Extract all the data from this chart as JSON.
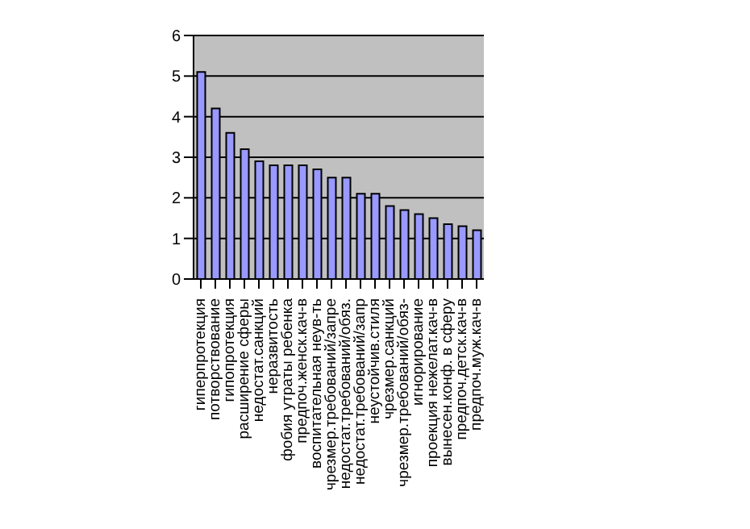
{
  "chart_data": {
    "type": "bar",
    "categories": [
      "гиперпротекция",
      "потворствование",
      "гипопротекция",
      "расширение сферы",
      "недостат.санкций",
      "неразвитость",
      "фобия утраты ребенка",
      "предпоч.женск.кач-в",
      "воспитательная неув-ть",
      "чрезмер.требований/запре",
      "недостат.требований/обяз.",
      "недостат.требований/запр",
      "неустойчив.стиля",
      "чрезмер.санкций",
      "чрезмер.требований/обяз-",
      "игнорирование",
      "проекция нежелат.кач-в",
      "вынесен.конф. в сферу",
      "предпоч.детск.кач-в",
      "предпоч.муж.кач-в"
    ],
    "values": [
      5.1,
      4.2,
      3.6,
      3.2,
      2.9,
      2.8,
      2.8,
      2.8,
      2.7,
      2.5,
      2.5,
      2.1,
      2.1,
      1.8,
      1.7,
      1.6,
      1.5,
      1.35,
      1.3,
      1.2
    ],
    "color": "#9999ff",
    "ylim": [
      0,
      6
    ],
    "yticks": [
      0,
      1,
      2,
      3,
      4,
      5,
      6
    ],
    "grid": "y"
  }
}
